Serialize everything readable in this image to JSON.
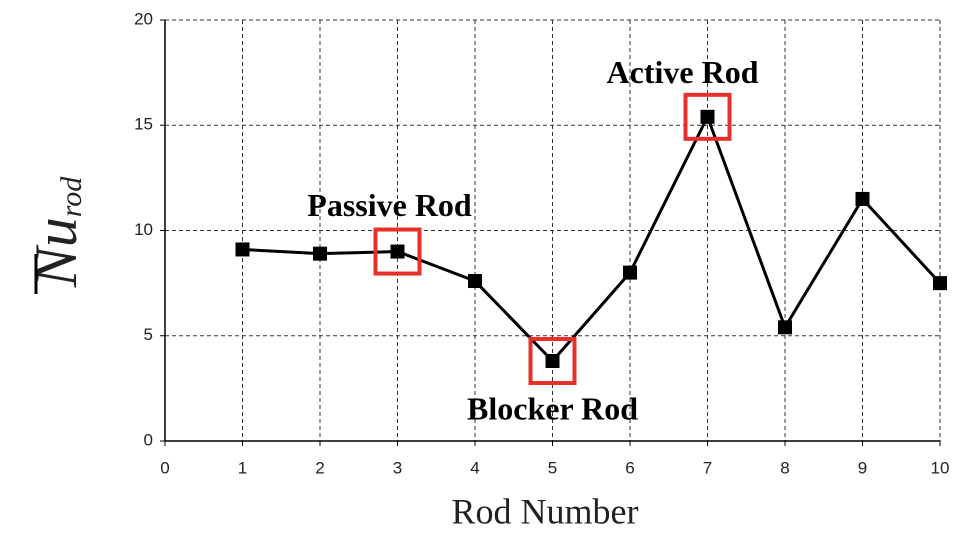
{
  "chart_data": {
    "type": "line",
    "xlabel": "Rod Number",
    "ylabel": {
      "text": "Nu",
      "subscript": "rod"
    },
    "x": [
      1,
      2,
      3,
      4,
      5,
      6,
      7,
      8,
      9,
      10
    ],
    "values": [
      9.1,
      8.9,
      9.0,
      7.6,
      3.8,
      8.0,
      15.4,
      5.4,
      11.5,
      7.5
    ],
    "color": "#000000",
    "xlim": [
      0,
      10
    ],
    "xticks": [
      0,
      1,
      2,
      3,
      4,
      5,
      6,
      7,
      8,
      9,
      10
    ],
    "ylim": [
      0,
      20
    ],
    "yticks": [
      0,
      5,
      10,
      15,
      20
    ],
    "grid": true,
    "annotations": [
      {
        "text": "Passive Rod",
        "x": 3
      },
      {
        "text": "Blocker Rod",
        "x": 5
      },
      {
        "text": "Active Rod",
        "x": 7
      }
    ],
    "highlight_color": "#e8302a"
  }
}
